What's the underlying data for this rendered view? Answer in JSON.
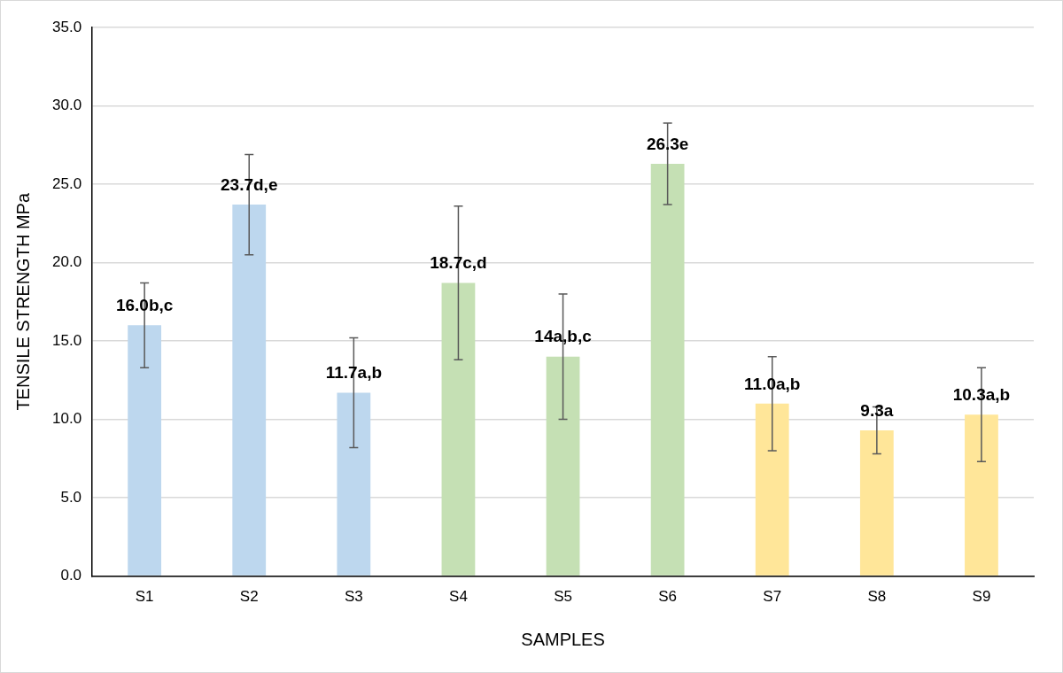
{
  "chart_data": {
    "type": "bar",
    "xlabel": "SAMPLES",
    "ylabel": "TENSILE STRENGTH MPa",
    "categories": [
      "S1",
      "S2",
      "S3",
      "S4",
      "S5",
      "S6",
      "S7",
      "S8",
      "S9"
    ],
    "values": [
      16.0,
      23.7,
      11.7,
      18.7,
      14,
      26.3,
      11.0,
      9.3,
      10.3
    ],
    "colors": [
      "#bdd7ee",
      "#bdd7ee",
      "#bdd7ee",
      "#c5e0b4",
      "#c5e0b4",
      "#c5e0b4",
      "#ffe699",
      "#ffe699",
      "#ffe699"
    ],
    "errors": [
      2.7,
      3.2,
      3.5,
      4.9,
      4.0,
      2.6,
      3.0,
      1.5,
      3.0
    ],
    "value_labels": [
      "16.0b,c",
      "23.7d,e",
      "11.7a,b",
      "18.7c,d",
      "14a,b,c",
      "26.3e",
      "11.0a,b",
      "9.3a",
      "10.3a,b"
    ],
    "ylim": [
      0,
      35
    ],
    "yticks": [
      {
        "value": 0,
        "label": "0.0"
      },
      {
        "value": 5,
        "label": "5.0"
      },
      {
        "value": 10,
        "label": "10.0"
      },
      {
        "value": 15,
        "label": "15.0"
      },
      {
        "value": 20,
        "label": "20.0"
      },
      {
        "value": 25,
        "label": "25.0"
      },
      {
        "value": 30,
        "label": "30.0"
      },
      {
        "value": 35,
        "label": "35.0"
      }
    ],
    "grid": "y",
    "legend": false
  }
}
